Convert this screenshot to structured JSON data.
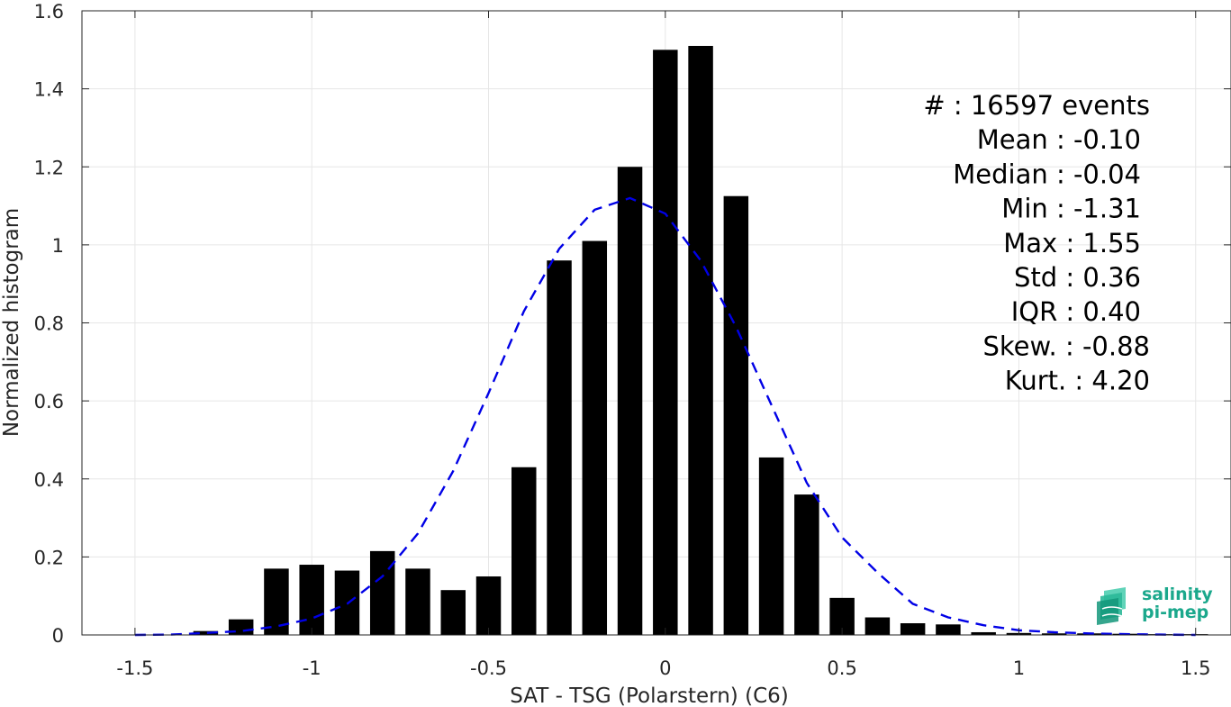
{
  "chart_data": {
    "type": "bar",
    "xlabel": "SAT - TSG (Polarstern) (C6)",
    "ylabel": "Normalized histogram",
    "xlim": [
      -1.65,
      1.6
    ],
    "ylim": [
      0,
      1.6
    ],
    "xticks": [
      -1.5,
      -1,
      -0.5,
      0,
      0.5,
      1,
      1.5
    ],
    "xtick_labels": [
      "-1.5",
      "-1",
      "-0.5",
      "0",
      "0.5",
      "1",
      "1.5"
    ],
    "yticks": [
      0,
      0.2,
      0.4,
      0.6,
      0.8,
      1,
      1.2,
      1.4,
      1.6
    ],
    "ytick_labels": [
      "0",
      "0.2",
      "0.4",
      "0.6",
      "0.8",
      "1",
      "1.2",
      "1.4",
      "1.6"
    ],
    "grid": true,
    "bar_width": 0.07,
    "bar_color": "#000000",
    "series": [
      {
        "type": "bar",
        "x": [
          -1.3,
          -1.2,
          -1.1,
          -1.0,
          -0.9,
          -0.8,
          -0.7,
          -0.6,
          -0.5,
          -0.4,
          -0.3,
          -0.2,
          -0.1,
          0.0,
          0.1,
          0.2,
          0.3,
          0.4,
          0.5,
          0.6,
          0.7,
          0.8,
          0.9,
          1.0,
          1.1,
          1.2,
          1.3,
          1.4,
          1.5
        ],
        "values": [
          0.01,
          0.04,
          0.17,
          0.18,
          0.165,
          0.215,
          0.17,
          0.115,
          0.15,
          0.43,
          0.96,
          1.01,
          1.2,
          1.5,
          1.51,
          1.125,
          0.455,
          0.36,
          0.095,
          0.045,
          0.03,
          0.027,
          0.007,
          0.005,
          0.004,
          0.004,
          0.003,
          0.002,
          0.002
        ]
      },
      {
        "type": "line",
        "style": "dashed",
        "color": "#0000e6",
        "x": [
          -1.5,
          -1.4,
          -1.3,
          -1.2,
          -1.1,
          -1.0,
          -0.9,
          -0.8,
          -0.7,
          -0.6,
          -0.5,
          -0.4,
          -0.3,
          -0.2,
          -0.1,
          0.0,
          0.1,
          0.2,
          0.3,
          0.4,
          0.5,
          0.6,
          0.7,
          0.8,
          0.9,
          1.0,
          1.1,
          1.2,
          1.3,
          1.4,
          1.5
        ],
        "values": [
          0.0,
          0.001,
          0.005,
          0.01,
          0.022,
          0.042,
          0.08,
          0.15,
          0.26,
          0.42,
          0.62,
          0.83,
          0.99,
          1.09,
          1.12,
          1.08,
          0.96,
          0.79,
          0.59,
          0.39,
          0.25,
          0.16,
          0.08,
          0.045,
          0.025,
          0.012,
          0.007,
          0.004,
          0.002,
          0.001,
          0.0
        ]
      }
    ],
    "annotation_lines": [
      "#  : 16597 events",
      "Mean : -0.10",
      "Median : -0.04",
      "Min : -1.31",
      "Max : 1.55",
      "Std : 0.36",
      "IQR : 0.40",
      "Skew. : -0.88",
      "Kurt. : 4.20"
    ],
    "annotation_align": "right"
  },
  "logo": {
    "line1": "salinity",
    "line2": "pi-mep",
    "color": "#1ba88c"
  }
}
